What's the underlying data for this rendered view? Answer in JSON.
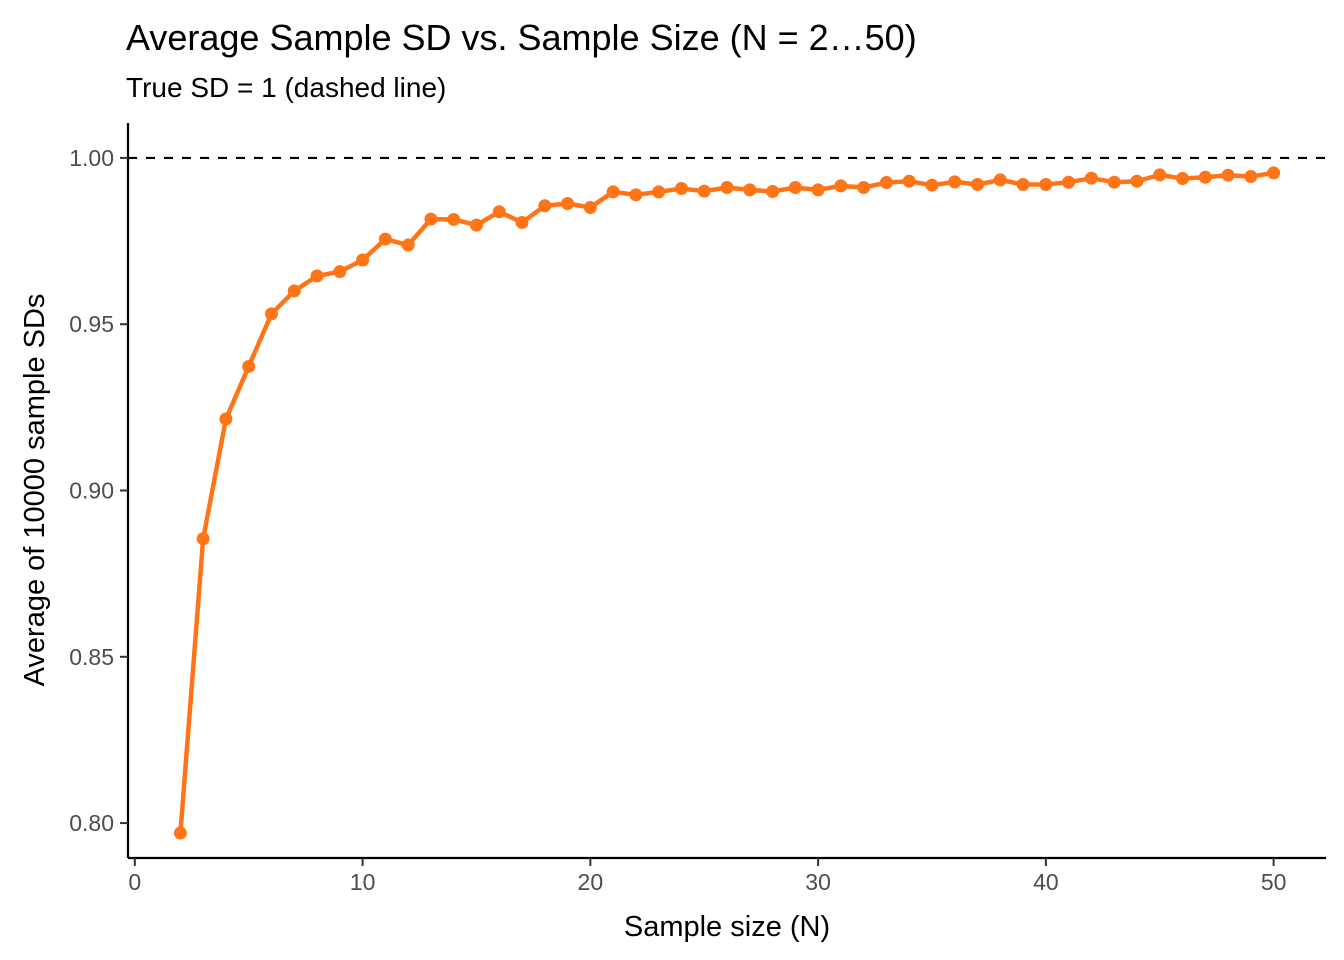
{
  "chart_data": {
    "type": "line",
    "title": "Average Sample SD vs. Sample Size (N = 2…50)",
    "subtitle": "True SD = 1 (dashed line)",
    "xlabel": "Sample size (N)",
    "ylabel": "Average of 10000 sample SDs",
    "xlim": [
      -0.3,
      52.3
    ],
    "ylim": [
      0.7895,
      1.0105
    ],
    "x_ticks": [
      0,
      10,
      20,
      30,
      40,
      50
    ],
    "x_tick_labels": [
      "0",
      "10",
      "20",
      "30",
      "40",
      "50"
    ],
    "y_ticks": [
      0.8,
      0.85,
      0.9,
      0.95,
      1.0
    ],
    "y_tick_labels": [
      "0.80",
      "0.85",
      "0.90",
      "0.95",
      "1.00"
    ],
    "grid": false,
    "legend": "none",
    "reference_line": {
      "y": 1.0,
      "style": "dashed",
      "color": "#000000"
    },
    "series": [
      {
        "color": "#ff7417",
        "x": [
          2,
          3,
          4,
          5,
          6,
          7,
          8,
          9,
          10,
          11,
          12,
          13,
          14,
          15,
          16,
          17,
          18,
          19,
          20,
          21,
          22,
          23,
          24,
          25,
          26,
          27,
          28,
          29,
          30,
          31,
          32,
          33,
          34,
          35,
          36,
          37,
          38,
          39,
          40,
          41,
          42,
          43,
          44,
          45,
          46,
          47,
          48,
          49,
          50
        ],
        "values": [
          0.797,
          0.8855,
          0.9215,
          0.9373,
          0.9531,
          0.96,
          0.9645,
          0.9658,
          0.9693,
          0.9756,
          0.9738,
          0.9816,
          0.9815,
          0.9798,
          0.9838,
          0.9806,
          0.9856,
          0.9863,
          0.9851,
          0.9898,
          0.9889,
          0.9898,
          0.9908,
          0.99,
          0.9911,
          0.9904,
          0.9899,
          0.9911,
          0.9904,
          0.9916,
          0.9911,
          0.9926,
          0.993,
          0.9918,
          0.9928,
          0.992,
          0.9934,
          0.992,
          0.992,
          0.9927,
          0.9939,
          0.9927,
          0.993,
          0.9949,
          0.9938,
          0.9942,
          0.9948,
          0.9944,
          0.9955
        ]
      }
    ]
  }
}
